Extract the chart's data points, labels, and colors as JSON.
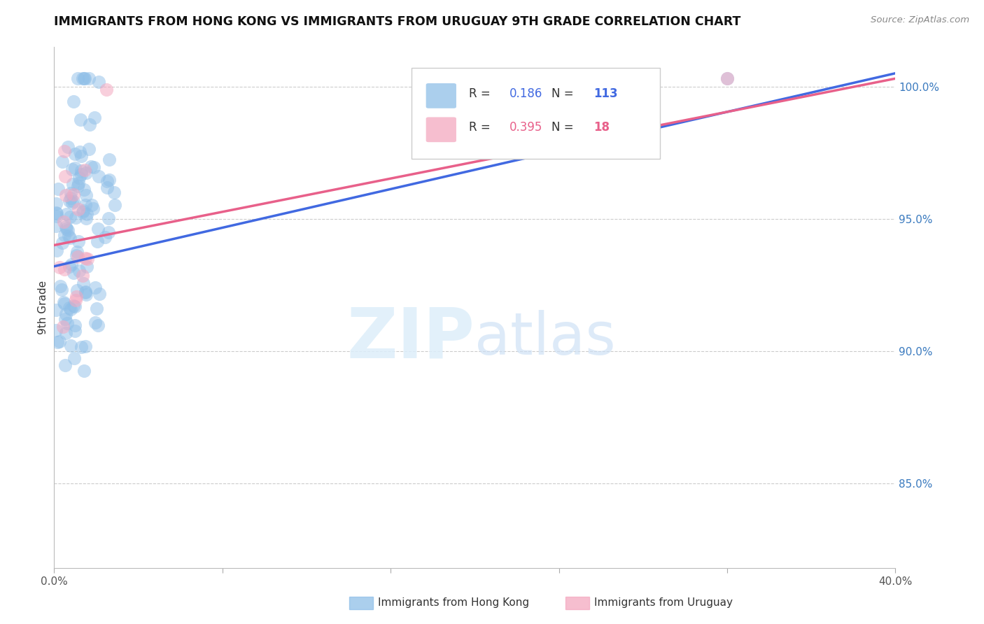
{
  "title": "IMMIGRANTS FROM HONG KONG VS IMMIGRANTS FROM URUGUAY 9TH GRADE CORRELATION CHART",
  "source": "Source: ZipAtlas.com",
  "ylabel": "9th Grade",
  "xlim": [
    0.0,
    0.4
  ],
  "ylim": [
    0.818,
    1.015
  ],
  "hk_color": "#8fbfe8",
  "uru_color": "#f4a8c0",
  "hk_line_color": "#4169e1",
  "uru_line_color": "#e8608a",
  "hk_R": 0.186,
  "hk_N": 113,
  "uru_R": 0.395,
  "uru_N": 18,
  "yticks": [
    0.85,
    0.9,
    0.95,
    1.0
  ],
  "ytick_labels": [
    "85.0%",
    "90.0%",
    "95.0%",
    "100.0%"
  ],
  "xticks": [
    0.0,
    0.08,
    0.16,
    0.24,
    0.32,
    0.4
  ],
  "xtick_labels": [
    "0.0%",
    "",
    "",
    "",
    "",
    "40.0%"
  ],
  "legend_label_hk": "Immigrants from Hong Kong",
  "legend_label_uru": "Immigrants from Uruguay",
  "hk_line_x0": 0.0,
  "hk_line_x1": 0.4,
  "hk_line_y0": 0.932,
  "hk_line_y1": 1.005,
  "uru_line_x0": 0.0,
  "uru_line_x1": 0.4,
  "uru_line_y0": 0.94,
  "uru_line_y1": 1.003
}
